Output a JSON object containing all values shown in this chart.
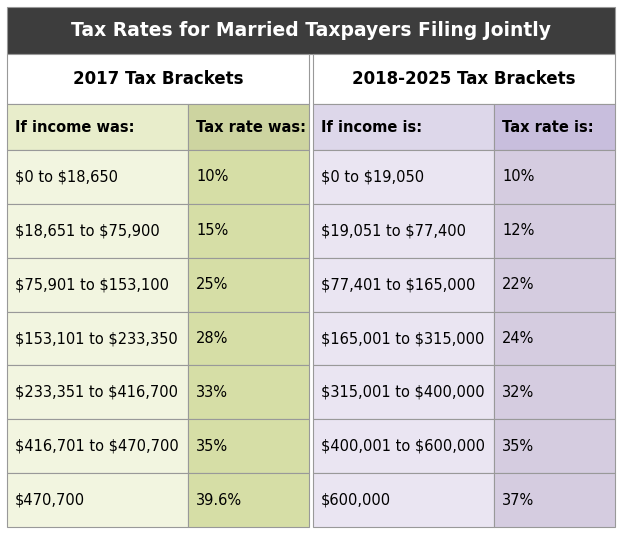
{
  "title": "Tax Rates for Married Taxpayers Filing Jointly",
  "title_bg": "#3d3d3d",
  "title_color": "#ffffff",
  "header2017": "2017 Tax Brackets",
  "header2018": "2018-2025 Tax Brackets",
  "header_bg": "#ffffff",
  "header_text_color": "#000000",
  "col_headers_2017": [
    "If income was:",
    "Tax rate was:"
  ],
  "col_headers_2018": [
    "If income is:",
    "Tax rate is:"
  ],
  "col_header_bg_2017_income": "#e8edcb",
  "col_header_bg_2017_rate": "#cdd4a0",
  "col_header_bg_2018_income": "#ddd7ea",
  "col_header_bg_2018_rate": "#c8bedd",
  "rows_2017_income": [
    "$0 to $18,650",
    "$18,651 to $75,900",
    "$75,901 to $153,100",
    "$153,101 to $233,350",
    "$233,351 to $416,700",
    "$416,701 to $470,700",
    "$470,700"
  ],
  "rows_2017_rate": [
    "10%",
    "15%",
    "25%",
    "28%",
    "33%",
    "35%",
    "39.6%"
  ],
  "rows_2018_income": [
    "$0 to $19,050",
    "$19,051 to $77,400",
    "$77,401 to $165,000",
    "$165,001 to $315,000",
    "$315,001 to $400,000",
    "$400,001 to $600,000",
    "$600,000"
  ],
  "rows_2018_rate": [
    "10%",
    "12%",
    "22%",
    "24%",
    "32%",
    "35%",
    "37%"
  ],
  "cell_bg_2017_income": "#f2f5e0",
  "cell_bg_2017_rate": "#d6dea6",
  "cell_bg_2018_income": "#eae5f2",
  "cell_bg_2018_rate": "#d5cce0",
  "border_color": "#999999",
  "text_color": "#000000",
  "font_size_title": 13.5,
  "font_size_section": 12,
  "font_size_col_header": 10.5,
  "font_size_cell": 10.5,
  "fig_w": 6.22,
  "fig_h": 5.34,
  "dpi": 100
}
